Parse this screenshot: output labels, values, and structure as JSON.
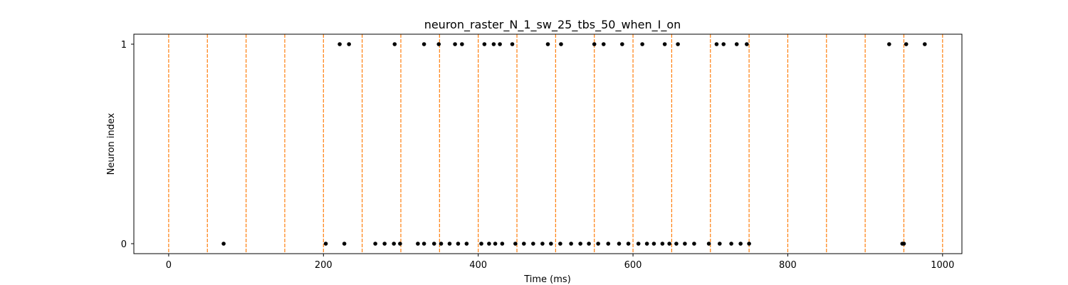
{
  "chart_data": {
    "type": "scatter",
    "title": "neuron_raster_N_1_sw_25_tbs_50_when_I_on",
    "xlabel": "Time (ms)",
    "ylabel": "Neuron index",
    "xlim": [
      -45,
      1025
    ],
    "ylim": [
      -0.05,
      1.05
    ],
    "x_ticks": [
      0,
      200,
      400,
      600,
      800,
      1000
    ],
    "y_ticks": [
      0,
      1
    ],
    "grid": false,
    "marker_color": "#000000",
    "vline_color": "#ff7f0e",
    "vlines": [
      0,
      50,
      100,
      150,
      200,
      250,
      300,
      350,
      400,
      450,
      500,
      550,
      600,
      650,
      700,
      750,
      800,
      850,
      900,
      950,
      1000
    ],
    "series": [
      {
        "neuron": 0,
        "x": [
          71,
          203,
          227,
          267,
          279,
          291,
          299,
          322,
          330,
          343,
          352,
          363,
          374,
          385,
          404,
          414,
          422,
          431,
          448,
          459,
          471,
          483,
          494,
          506,
          520,
          532,
          543,
          555,
          568,
          582,
          594,
          607,
          618,
          627,
          638,
          647,
          656,
          667,
          679,
          698,
          712,
          727,
          739,
          750,
          948,
          950
        ]
      },
      {
        "neuron": 1,
        "x": [
          221,
          233,
          292,
          330,
          349,
          370,
          379,
          408,
          420,
          428,
          444,
          490,
          507,
          550,
          562,
          586,
          612,
          641,
          658,
          708,
          717,
          734,
          747,
          931,
          953,
          977
        ]
      }
    ]
  }
}
